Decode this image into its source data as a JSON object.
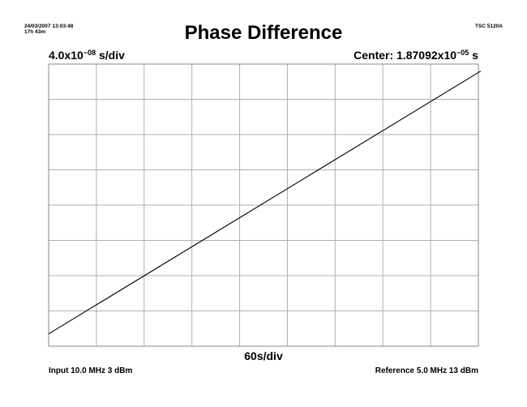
{
  "header": {
    "timestamp": "24/03/2007 13:03:48",
    "duration": "17h 43m",
    "model": "TSC 5120A"
  },
  "footer": {
    "input": "Input 10.0 MHz 3 dBm",
    "reference": "Reference 5.0 MHz 13 dBm"
  },
  "chart_data": {
    "type": "line",
    "title": "Phase Difference",
    "y_scale": {
      "mantissa": "4.0x10",
      "exponent": "−08",
      "unit": " s/div"
    },
    "center": {
      "prefix": "Center: ",
      "mantissa": "1.87092x10",
      "exponent": "−05",
      "unit": " s"
    },
    "x_scale": "60s/div",
    "grid": true,
    "x_divisions": 9,
    "y_divisions": 8,
    "series": [
      {
        "x": [
          0,
          9.05
        ],
        "y": [
          -3.65,
          3.8
        ]
      }
    ],
    "line_color": "#000000",
    "grid_color": "#b0b0b0"
  }
}
